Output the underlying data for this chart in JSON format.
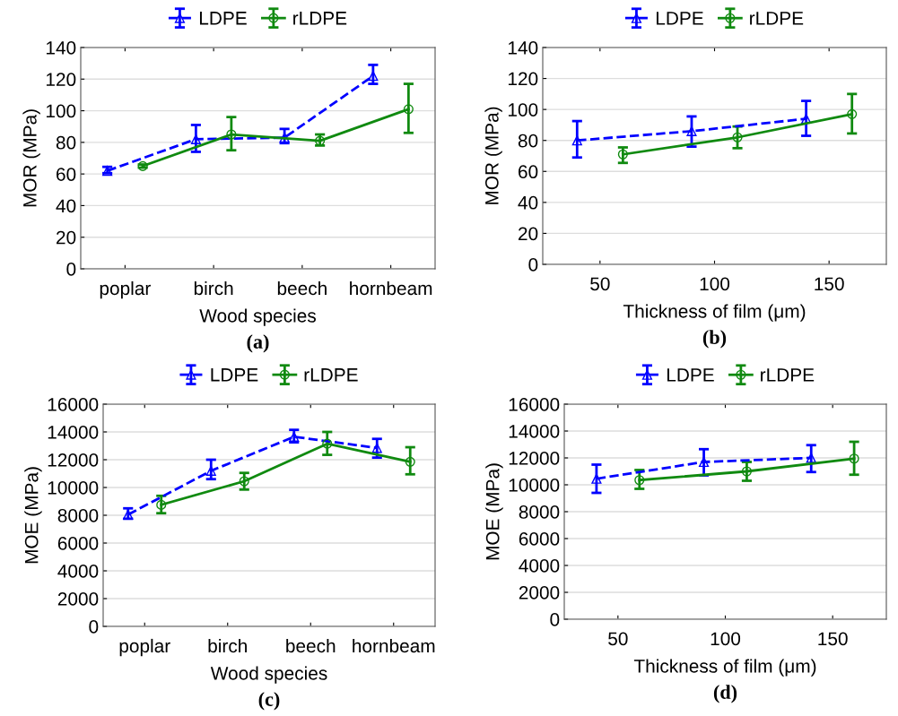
{
  "chart_data": [
    {
      "type": "line",
      "categories": [
        "poplar",
        "birch",
        "beech",
        "hornbeam"
      ],
      "xlabel": "Wood species",
      "ylabel": "MOR (MPa)",
      "ylim": [
        0,
        140
      ],
      "yticks": [
        0,
        20,
        40,
        60,
        80,
        100,
        120,
        140
      ],
      "grid": "y",
      "legend": "top",
      "annotations": [
        "(a)"
      ],
      "series": [
        {
          "name": "LDPE",
          "color": "#0000ff",
          "marker": "triangle",
          "line_style": "dashed",
          "values": [
            62,
            82,
            83,
            122
          ],
          "errors": [
            [
              60.5,
              64.5
            ],
            [
              74,
              91
            ],
            [
              79.5,
              88.5
            ],
            [
              117,
              129
            ]
          ]
        },
        {
          "name": "rLDPE",
          "color": "#108a10",
          "marker": "circle",
          "line_style": "solid",
          "values": [
            65,
            85,
            81,
            101
          ],
          "errors": [
            [
              64,
              66
            ],
            [
              75,
              96
            ],
            [
              78,
              85
            ],
            [
              86,
              117
            ]
          ]
        }
      ]
    },
    {
      "type": "line",
      "xlabel": "Thickness of film (μm)",
      "ylabel": "MOR (MPa)",
      "xlim": [
        25,
        175
      ],
      "xticks": [
        50,
        100,
        150
      ],
      "ylim": [
        0,
        140
      ],
      "yticks": [
        0,
        20,
        40,
        60,
        80,
        100,
        120,
        140
      ],
      "grid": "y",
      "legend": "top",
      "annotations": [
        "(b)"
      ],
      "series": [
        {
          "name": "LDPE",
          "color": "#0000ff",
          "marker": "triangle",
          "line_style": "dashed",
          "x": [
            40,
            90,
            140
          ],
          "values": [
            80,
            86,
            94
          ],
          "errors": [
            [
              69,
              92.5
            ],
            [
              76,
              95.5
            ],
            [
              83,
              105.5
            ]
          ]
        },
        {
          "name": "rLDPE",
          "color": "#108a10",
          "marker": "circle",
          "line_style": "solid",
          "x": [
            60,
            110,
            160
          ],
          "values": [
            71,
            82,
            97
          ],
          "errors": [
            [
              65.5,
              75.5
            ],
            [
              75,
              89
            ],
            [
              84.5,
              110
            ]
          ]
        }
      ]
    },
    {
      "type": "line",
      "categories": [
        "poplar",
        "birch",
        "beech",
        "hornbeam"
      ],
      "xlabel": "Wood species",
      "ylabel": "MOE (MPa)",
      "ylim": [
        0,
        16000
      ],
      "yticks": [
        0,
        2000,
        4000,
        6000,
        8000,
        10000,
        12000,
        14000,
        16000
      ],
      "grid": "y",
      "legend": "top",
      "annotations": [
        "(c)"
      ],
      "series": [
        {
          "name": "LDPE",
          "color": "#0000ff",
          "marker": "triangle",
          "line_style": "dashed",
          "values": [
            8050,
            11200,
            13650,
            12850
          ],
          "errors": [
            [
              7750,
              8500
            ],
            [
              10600,
              12000
            ],
            [
              13250,
              14150
            ],
            [
              12150,
              13500
            ]
          ]
        },
        {
          "name": "rLDPE",
          "color": "#108a10",
          "marker": "circle",
          "line_style": "solid",
          "values": [
            8750,
            10450,
            13150,
            11850
          ],
          "errors": [
            [
              8150,
              9400
            ],
            [
              9850,
              11050
            ],
            [
              12350,
              14000
            ],
            [
              10950,
              12900
            ]
          ]
        }
      ]
    },
    {
      "type": "line",
      "xlabel": "Thickness of film (μm)",
      "ylabel": "MOE (MPa)",
      "xlim": [
        25,
        175
      ],
      "xticks": [
        50,
        100,
        150
      ],
      "ylim": [
        0,
        16000
      ],
      "yticks": [
        0,
        2000,
        4000,
        6000,
        8000,
        10000,
        12000,
        14000,
        16000
      ],
      "grid": "y",
      "legend": "top",
      "annotations": [
        "(d)"
      ],
      "series": [
        {
          "name": "LDPE",
          "color": "#0000ff",
          "marker": "triangle",
          "line_style": "dashed",
          "x": [
            40,
            90,
            140
          ],
          "values": [
            10450,
            11700,
            12000
          ],
          "errors": [
            [
              9400,
              11500
            ],
            [
              10700,
              12650
            ],
            [
              10950,
              12950
            ]
          ]
        },
        {
          "name": "rLDPE",
          "color": "#108a10",
          "marker": "circle",
          "line_style": "solid",
          "x": [
            60,
            110,
            160
          ],
          "values": [
            10350,
            11000,
            11950
          ],
          "errors": [
            [
              9700,
              11100
            ],
            [
              10300,
              11700
            ],
            [
              10750,
              13200
            ]
          ]
        }
      ]
    }
  ]
}
